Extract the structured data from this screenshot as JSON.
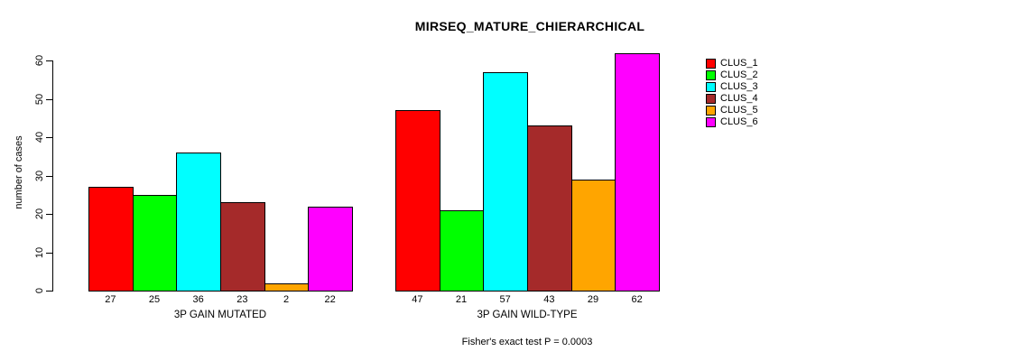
{
  "chart_data": {
    "type": "bar",
    "title": "MIRSEQ_MATURE_CHIERARCHICAL",
    "xlabel": "",
    "ylabel": "number of cases",
    "ylim": [
      0,
      62
    ],
    "yticks": [
      0,
      10,
      20,
      30,
      40,
      50,
      60
    ],
    "grid": false,
    "legend_position": "top-right",
    "categories": [
      "3P GAIN MUTATED",
      "3P GAIN WILD-TYPE"
    ],
    "series": [
      {
        "name": "CLUS_1",
        "color": "#FF0000",
        "values": [
          27,
          47
        ]
      },
      {
        "name": "CLUS_2",
        "color": "#00FF00",
        "values": [
          25,
          21
        ]
      },
      {
        "name": "CLUS_3",
        "color": "#00FFFF",
        "values": [
          36,
          57
        ]
      },
      {
        "name": "CLUS_4",
        "color": "#A52A2A",
        "values": [
          23,
          43
        ]
      },
      {
        "name": "CLUS_5",
        "color": "#FFA500",
        "values": [
          2,
          29
        ]
      },
      {
        "name": "CLUS_6",
        "color": "#FF00FF",
        "values": [
          22,
          62
        ]
      }
    ],
    "bar_value_labels_shown": true,
    "footnote": "Fisher's exact test P = 0.0003"
  }
}
